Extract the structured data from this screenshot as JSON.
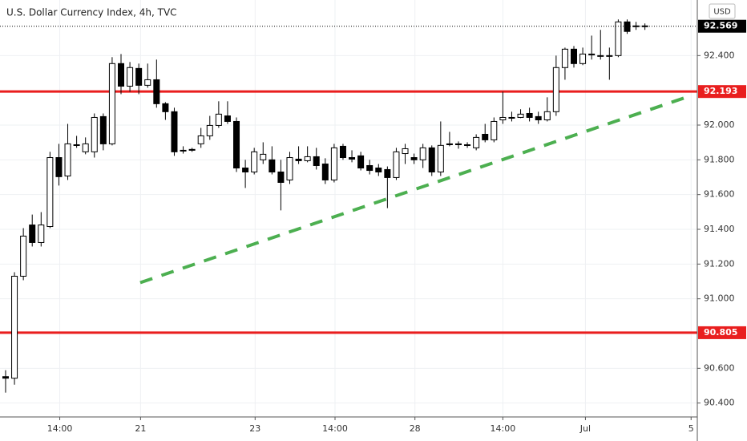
{
  "chart_data": {
    "type": "candlestick",
    "title": "U.S. Dollar Currency Index, 4h, TVC",
    "currency": "USD",
    "xlim": [
      -0.63,
      77.9
    ],
    "ylim": [
      90.32,
      92.72
    ],
    "xticks": [
      {
        "value": 6.1,
        "label": "14:00"
      },
      {
        "value": 15.2,
        "label": "21"
      },
      {
        "value": 28.1,
        "label": "23"
      },
      {
        "value": 37.1,
        "label": "14:00"
      },
      {
        "value": 46.1,
        "label": "28"
      },
      {
        "value": 56.0,
        "label": "14:00"
      },
      {
        "value": 65.3,
        "label": "Jul"
      },
      {
        "value": 77.2,
        "label": "5"
      }
    ],
    "yticks": [
      {
        "value": 92.4,
        "label": "92.400"
      },
      {
        "value": 92.0,
        "label": "92.000"
      },
      {
        "value": 91.8,
        "label": "91.800"
      },
      {
        "value": 91.6,
        "label": "91.600"
      },
      {
        "value": 91.4,
        "label": "91.400"
      },
      {
        "value": 91.2,
        "label": "91.200"
      },
      {
        "value": 91.0,
        "label": "91.000"
      },
      {
        "value": 90.6,
        "label": "90.600"
      },
      {
        "value": 90.4,
        "label": "90.400"
      }
    ],
    "grid": true,
    "up_color": "#ffffff",
    "down_color": "#000000",
    "open": [
      90.552,
      90.543,
      91.13,
      91.425,
      91.324,
      91.416,
      91.813,
      91.707,
      91.887,
      91.846,
      91.846,
      92.049,
      91.892,
      92.354,
      92.224,
      92.326,
      92.229,
      92.261,
      92.123,
      92.077,
      91.855,
      91.86,
      91.892,
      91.938,
      91.998,
      92.053,
      92.021,
      91.753,
      91.73,
      91.8,
      91.8,
      91.73,
      91.684,
      91.804,
      91.795,
      91.818,
      91.776,
      91.684,
      91.878,
      91.813,
      91.823,
      91.767,
      91.753,
      91.744,
      91.698,
      91.836,
      91.813,
      91.8,
      91.869,
      91.73,
      91.892,
      91.892,
      91.883,
      91.869,
      91.947,
      91.915,
      92.03,
      92.04,
      92.044,
      92.067,
      92.049,
      92.03,
      92.077,
      92.331,
      92.437,
      92.354,
      92.404,
      92.4,
      92.4,
      92.4,
      92.594,
      92.571,
      92.571
    ],
    "high": [
      90.589,
      91.153,
      91.407,
      91.485,
      91.499,
      91.846,
      91.892,
      92.007,
      91.938,
      91.929,
      92.067,
      92.067,
      92.391,
      92.409,
      92.363,
      92.354,
      92.354,
      92.377,
      92.132,
      92.1,
      91.878,
      91.869,
      91.984,
      92.053,
      92.137,
      92.137,
      92.044,
      91.8,
      91.869,
      91.901,
      91.878,
      91.8,
      91.846,
      91.878,
      91.878,
      91.869,
      91.809,
      91.892,
      91.892,
      91.855,
      91.846,
      91.8,
      91.776,
      91.762,
      91.869,
      91.892,
      91.836,
      91.892,
      91.883,
      92.021,
      91.961,
      91.906,
      91.901,
      91.947,
      92.007,
      92.044,
      92.192,
      92.077,
      92.091,
      92.1,
      92.077,
      92.16,
      92.4,
      92.446,
      92.455,
      92.446,
      92.515,
      92.548,
      92.446,
      92.608,
      92.608,
      92.594,
      92.585
    ],
    "low": [
      90.46,
      90.506,
      91.107,
      91.301,
      91.301,
      91.407,
      91.652,
      91.684,
      91.869,
      91.832,
      91.813,
      91.855,
      91.883,
      92.178,
      92.192,
      92.178,
      92.215,
      92.1,
      92.03,
      91.823,
      91.836,
      91.846,
      91.869,
      91.915,
      91.984,
      92.007,
      91.73,
      91.638,
      91.716,
      91.776,
      91.716,
      91.509,
      91.661,
      91.776,
      91.786,
      91.744,
      91.661,
      91.67,
      91.8,
      91.786,
      91.739,
      91.716,
      91.707,
      91.522,
      91.684,
      91.776,
      91.776,
      91.753,
      91.707,
      91.707,
      91.878,
      91.864,
      91.869,
      91.855,
      91.901,
      91.901,
      92.007,
      92.021,
      92.04,
      92.021,
      92.007,
      92.021,
      92.053,
      92.261,
      92.331,
      92.345,
      92.377,
      92.377,
      92.261,
      92.391,
      92.525,
      92.548,
      92.548
    ],
    "close": [
      90.543,
      91.13,
      91.361,
      91.324,
      91.425,
      91.813,
      91.703,
      91.892,
      91.883,
      91.892,
      92.044,
      91.892,
      92.354,
      92.224,
      92.331,
      92.229,
      92.261,
      92.123,
      92.077,
      91.846,
      91.852,
      91.855,
      91.938,
      91.998,
      92.063,
      92.021,
      91.753,
      91.73,
      91.846,
      91.832,
      91.73,
      91.67,
      91.813,
      91.795,
      91.818,
      91.767,
      91.684,
      91.869,
      91.813,
      91.804,
      91.753,
      91.739,
      91.73,
      91.698,
      91.846,
      91.864,
      91.8,
      91.869,
      91.73,
      91.883,
      91.887,
      91.887,
      91.887,
      91.929,
      91.915,
      92.021,
      92.044,
      92.044,
      92.063,
      92.044,
      92.03,
      92.077,
      92.331,
      92.437,
      92.354,
      92.409,
      92.409,
      92.397,
      92.397,
      92.594,
      92.539,
      92.567,
      92.569
    ],
    "hlines": [
      {
        "value": 92.193,
        "color": "#e91e1e"
      },
      {
        "value": 90.805,
        "color": "#e91e1e"
      }
    ],
    "trendline": {
      "x": [
        15.16,
        77.17
      ],
      "y": [
        91.093,
        92.169
      ],
      "color": "#4caf50"
    }
  }
}
